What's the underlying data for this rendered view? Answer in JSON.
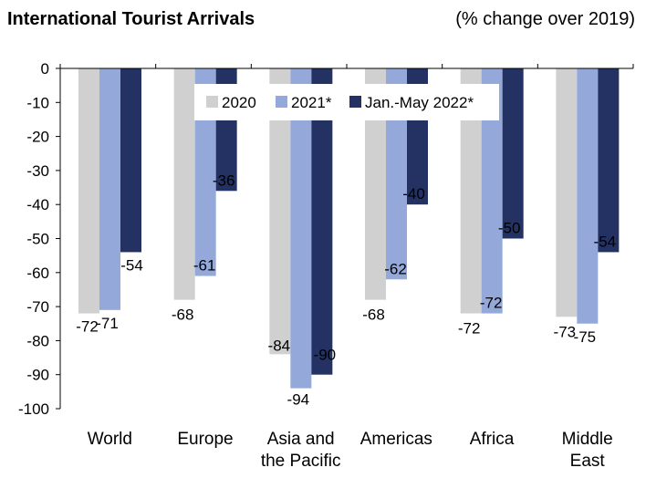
{
  "header": {
    "title": "International Tourist Arrivals",
    "subtitle": "(% change over 2019)"
  },
  "chart_data": {
    "type": "bar",
    "categories": [
      [
        "World"
      ],
      [
        "Europe"
      ],
      [
        "Asia and",
        "the Pacific"
      ],
      [
        "Americas"
      ],
      [
        "Africa"
      ],
      [
        "Middle",
        "East"
      ]
    ],
    "series": [
      {
        "name": "2020",
        "color": "#d0d0d0",
        "values": [
          -72,
          -68,
          -84,
          -68,
          -72,
          -73
        ]
      },
      {
        "name": "2021*",
        "color": "#94a9da",
        "values": [
          -71,
          -61,
          -94,
          -62,
          -72,
          -75
        ]
      },
      {
        "name": "Jan.-May 2022*",
        "color": "#233262",
        "values": [
          -54,
          -36,
          -90,
          -40,
          -50,
          -54
        ]
      }
    ],
    "ylim": [
      -100,
      0
    ],
    "yticks": [
      0,
      -10,
      -20,
      -30,
      -40,
      -50,
      -60,
      -70,
      -80,
      -90,
      -100
    ],
    "grid": false,
    "legend_position": "top-center",
    "data_labels": [
      [
        "-72",
        "-71",
        "-54"
      ],
      [
        "-68",
        "-61",
        "-36"
      ],
      [
        "-84",
        "-94",
        "-90"
      ],
      [
        "-68",
        "-62",
        "-40"
      ],
      [
        "-72",
        "-72",
        "-50"
      ],
      [
        "-73",
        "-75",
        "-54"
      ]
    ]
  }
}
